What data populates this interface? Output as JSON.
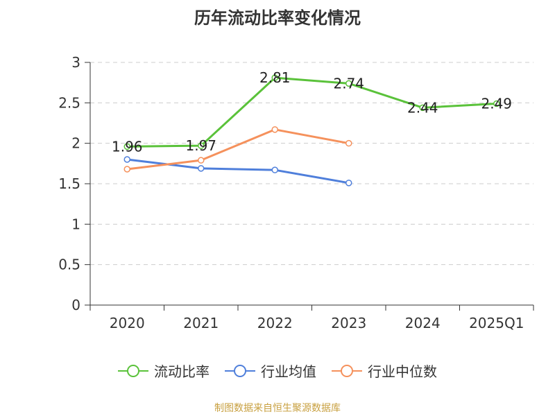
{
  "chart_data": {
    "type": "line",
    "title": "历年流动比率变化情况",
    "categories": [
      "2020",
      "2021",
      "2022",
      "2023",
      "2024",
      "2025Q1"
    ],
    "ylim": [
      0,
      3
    ],
    "yticks": [
      "0",
      "0.5",
      "1",
      "1.5",
      "2",
      "2.5",
      "3"
    ],
    "grid": true,
    "legend_position": "bottom",
    "series": [
      {
        "name": "流动比率",
        "color": "#5ac23a",
        "values": [
          1.96,
          1.97,
          2.81,
          2.74,
          2.44,
          2.49
        ],
        "labels": [
          "1.96",
          "1.97",
          "2.81",
          "2.74",
          "2.44",
          "2.49"
        ]
      },
      {
        "name": "行业均值",
        "color": "#4f7fdb",
        "values": [
          1.8,
          1.69,
          1.67,
          1.51,
          null,
          null
        ]
      },
      {
        "name": "行业中位数",
        "color": "#f5915c",
        "values": [
          1.68,
          1.79,
          2.17,
          2.0,
          null,
          null
        ]
      }
    ]
  },
  "footer": {
    "source": "制图数据来自恒生聚源数据库"
  }
}
